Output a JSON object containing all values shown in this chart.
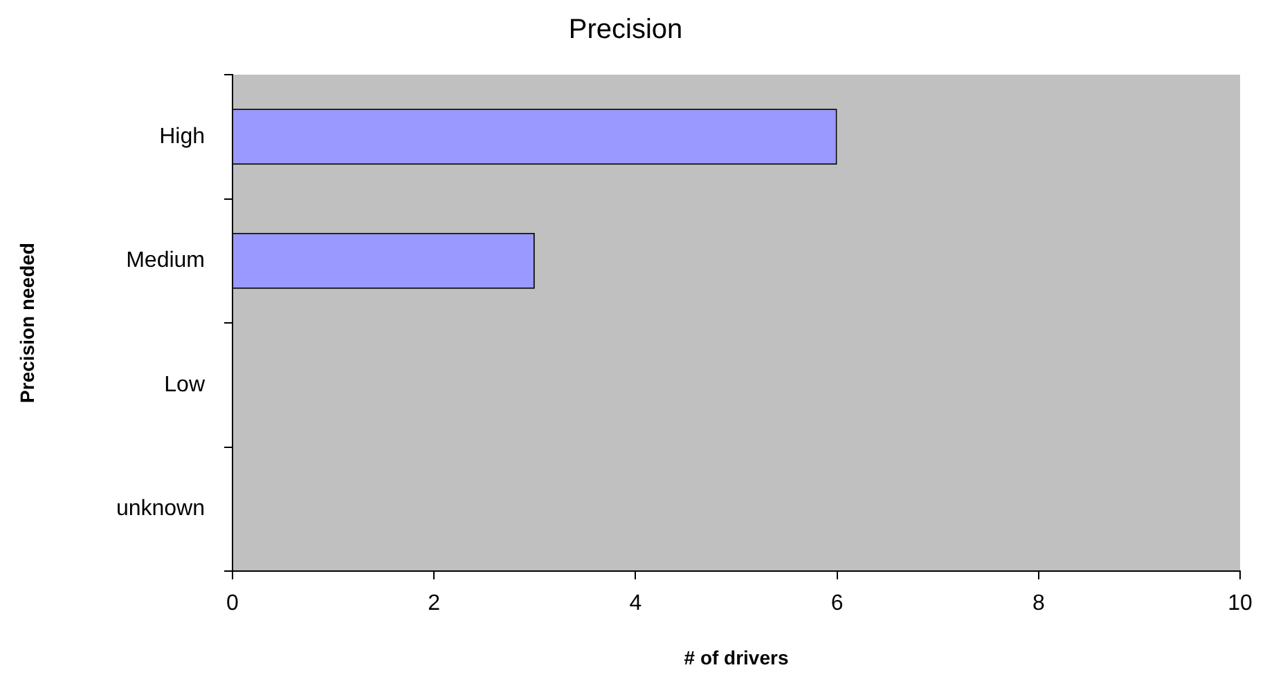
{
  "chart_data": {
    "type": "bar",
    "orientation": "horizontal",
    "title": "Precision",
    "xlabel": "# of drivers",
    "ylabel": "Precision needed",
    "categories": [
      "High",
      "Medium",
      "Low",
      "unknown"
    ],
    "values": [
      6,
      3,
      0,
      0
    ],
    "color": "#9999ff",
    "xlim": [
      0,
      10
    ],
    "xticks": [
      0,
      2,
      4,
      6,
      8,
      10
    ],
    "grid": false,
    "legend": false
  }
}
